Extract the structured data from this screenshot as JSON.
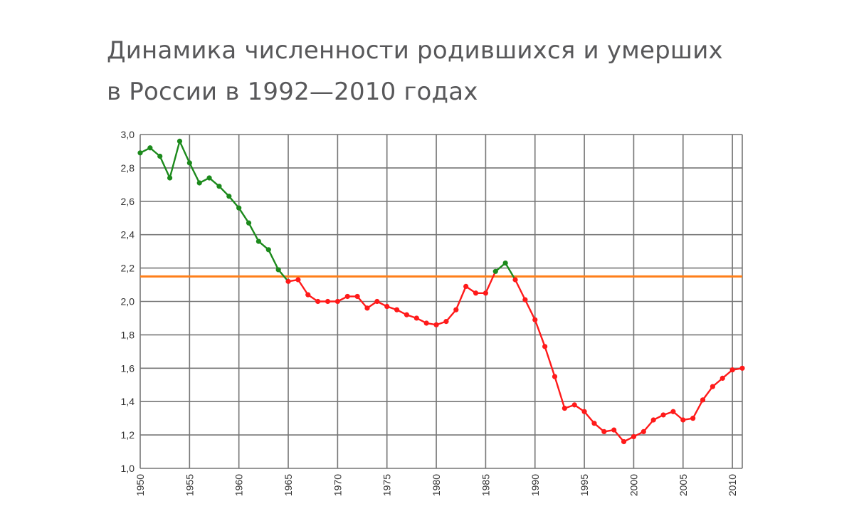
{
  "title": {
    "line1": "Динамика численности родившихся и умерших",
    "line2": "в России в 1992—2010 годах"
  },
  "colors": {
    "above": "#1c8a1c",
    "below": "#ff1a1a",
    "reference": "#ff7f1a",
    "grid": "#777777",
    "background": "#ffffff"
  },
  "chart_data": {
    "type": "line",
    "title": "Динамика численности родившихся и умерших в России в 1992—2010 годах",
    "xlabel": "",
    "ylabel": "",
    "xlim": [
      1950,
      2011
    ],
    "ylim": [
      1.0,
      3.0
    ],
    "grid": true,
    "y_ticks": [
      "1,0",
      "1,2",
      "1,4",
      "1,6",
      "1,8",
      "2,0",
      "2,2",
      "2,4",
      "2,6",
      "2,8",
      "3,0"
    ],
    "x_ticks": [
      "1950",
      "1955",
      "1960",
      "1965",
      "1970",
      "1975",
      "1980",
      "1985",
      "1990",
      "1995",
      "2000",
      "2005",
      "2010"
    ],
    "reference_line": 2.15,
    "x": [
      1950,
      1951,
      1952,
      1953,
      1954,
      1955,
      1956,
      1957,
      1958,
      1959,
      1960,
      1961,
      1962,
      1963,
      1964,
      1965,
      1966,
      1967,
      1968,
      1969,
      1970,
      1971,
      1972,
      1973,
      1974,
      1975,
      1976,
      1977,
      1978,
      1979,
      1980,
      1981,
      1982,
      1983,
      1984,
      1985,
      1986,
      1987,
      1988,
      1989,
      1990,
      1991,
      1992,
      1993,
      1994,
      1995,
      1996,
      1997,
      1998,
      1999,
      2000,
      2001,
      2002,
      2003,
      2004,
      2005,
      2006,
      2007,
      2008,
      2009,
      2010,
      2011
    ],
    "values": [
      2.89,
      2.92,
      2.87,
      2.74,
      2.96,
      2.83,
      2.71,
      2.74,
      2.69,
      2.63,
      2.56,
      2.47,
      2.36,
      2.31,
      2.19,
      2.12,
      2.13,
      2.04,
      2.0,
      2.0,
      2.0,
      2.03,
      2.03,
      1.96,
      2.0,
      1.97,
      1.95,
      1.92,
      1.9,
      1.87,
      1.86,
      1.88,
      1.95,
      2.09,
      2.05,
      2.05,
      2.18,
      2.23,
      2.13,
      2.01,
      1.89,
      1.73,
      1.55,
      1.36,
      1.38,
      1.34,
      1.27,
      1.22,
      1.23,
      1.16,
      1.19,
      1.22,
      1.29,
      1.32,
      1.34,
      1.29,
      1.3,
      1.41,
      1.49,
      1.54,
      1.59,
      1.6
    ]
  }
}
